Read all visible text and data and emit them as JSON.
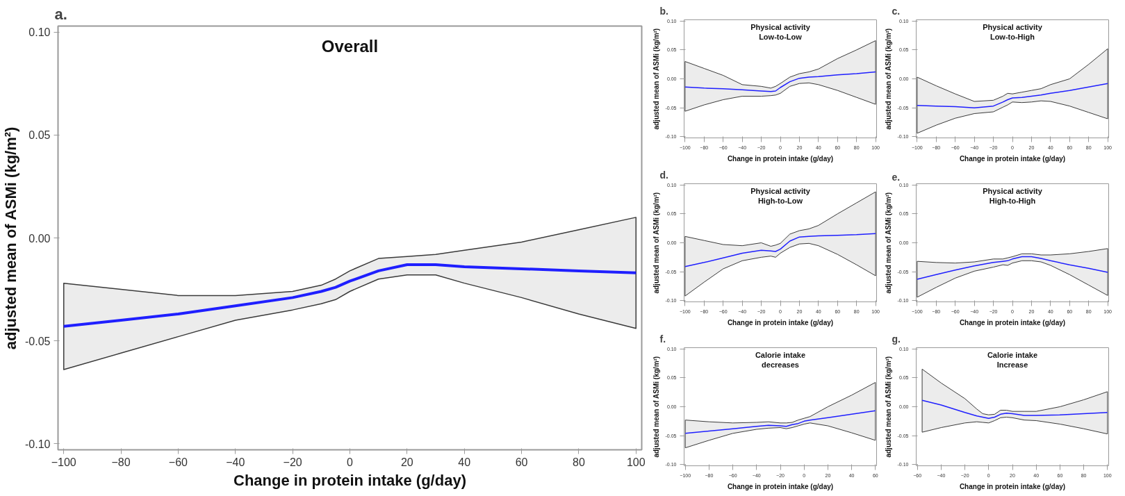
{
  "chart_data": [
    {
      "type": "line",
      "title": "Overall",
      "annotations": [
        "a."
      ],
      "xlabel": "Change in protein intake (g/day)",
      "ylabel": "adjusted mean of ASMi (kg/m²)",
      "xlim": [
        -102,
        102
      ],
      "ylim": [
        -0.103,
        0.103
      ],
      "xticks": [
        -100,
        -80,
        -60,
        -40,
        -20,
        0,
        20,
        40,
        60,
        80,
        100
      ],
      "yticks": [
        {
          "value": -0.1,
          "label": "-0.10"
        },
        {
          "value": -0.05,
          "label": "-0.05"
        },
        {
          "value": 0,
          "label": "0.00"
        },
        {
          "value": 0.05,
          "label": "0.05"
        },
        {
          "value": 0.1,
          "label": "0.10"
        }
      ],
      "grid": false,
      "legend": false,
      "series": [
        {
          "color": "#1f1fff",
          "x": [
            -100,
            -80,
            -60,
            -40,
            -20,
            -10,
            -5,
            0,
            10,
            20,
            30,
            40,
            60,
            80,
            100
          ],
          "values": [
            -0.043,
            -0.04,
            -0.037,
            -0.033,
            -0.029,
            -0.026,
            -0.024,
            -0.021,
            -0.016,
            -0.013,
            -0.013,
            -0.014,
            -0.015,
            -0.016,
            -0.017
          ],
          "upper": [
            -0.022,
            -0.025,
            -0.028,
            -0.028,
            -0.026,
            -0.023,
            -0.02,
            -0.016,
            -0.01,
            -0.009,
            -0.008,
            -0.006,
            -0.002,
            0.004,
            0.01
          ],
          "lower": [
            -0.064,
            -0.056,
            -0.048,
            -0.04,
            -0.035,
            -0.032,
            -0.03,
            -0.026,
            -0.02,
            -0.018,
            -0.018,
            -0.022,
            -0.029,
            -0.037,
            -0.044
          ]
        }
      ]
    },
    {
      "type": "line",
      "title": "Physical activity\nLow-to-Low",
      "annotations": [
        "b."
      ],
      "xlabel": "Change in protein intake (g/day)",
      "ylabel": "adjusted mean of ASMi (kg/m²)",
      "xlim": [
        -101,
        101
      ],
      "ylim": [
        -0.102,
        0.102
      ],
      "xticks": [
        -100,
        -80,
        -60,
        -40,
        -20,
        0,
        20,
        40,
        60,
        80,
        100
      ],
      "yticks": [
        {
          "value": -0.1,
          "label": "-0.10"
        },
        {
          "value": -0.05,
          "label": "-0.05"
        },
        {
          "value": 0,
          "label": "0.00"
        },
        {
          "value": 0.05,
          "label": "0.05"
        },
        {
          "value": 0.1,
          "label": "0.10"
        }
      ],
      "grid": false,
      "legend": false,
      "series": [
        {
          "color": "#1f1fff",
          "x": [
            -100,
            -80,
            -60,
            -40,
            -20,
            -10,
            -5,
            0,
            10,
            20,
            30,
            40,
            60,
            80,
            100
          ],
          "values": [
            -0.014,
            -0.016,
            -0.017,
            -0.019,
            -0.021,
            -0.022,
            -0.021,
            -0.015,
            -0.005,
            0.001,
            0.003,
            0.004,
            0.007,
            0.009,
            0.012
          ],
          "upper": [
            0.03,
            0.018,
            0.006,
            -0.01,
            -0.013,
            -0.016,
            -0.013,
            -0.008,
            0.003,
            0.009,
            0.012,
            0.017,
            0.035,
            0.05,
            0.066
          ],
          "lower": [
            -0.056,
            -0.045,
            -0.036,
            -0.03,
            -0.03,
            -0.029,
            -0.028,
            -0.025,
            -0.013,
            -0.008,
            -0.007,
            -0.01,
            -0.02,
            -0.032,
            -0.044
          ]
        }
      ]
    },
    {
      "type": "line",
      "title": "Physical activity\nLow-to-High",
      "annotations": [
        "c."
      ],
      "xlabel": "Change in protein intake (g/day)",
      "ylabel": "adjusted mean of ASMi (kg/m²)",
      "xlim": [
        -101,
        101
      ],
      "ylim": [
        -0.102,
        0.102
      ],
      "xticks": [
        -100,
        -80,
        -60,
        -40,
        -20,
        0,
        20,
        40,
        60,
        80,
        100
      ],
      "yticks": [
        {
          "value": -0.1,
          "label": "-0.10"
        },
        {
          "value": -0.05,
          "label": "-0.05"
        },
        {
          "value": 0,
          "label": "0.00"
        },
        {
          "value": 0.05,
          "label": "0.05"
        },
        {
          "value": 0.1,
          "label": "0.10"
        }
      ],
      "grid": false,
      "legend": false,
      "series": [
        {
          "color": "#1f1fff",
          "x": [
            -100,
            -80,
            -60,
            -40,
            -20,
            -10,
            -5,
            0,
            10,
            20,
            30,
            40,
            60,
            80,
            100
          ],
          "values": [
            -0.046,
            -0.047,
            -0.048,
            -0.05,
            -0.047,
            -0.04,
            -0.036,
            -0.033,
            -0.032,
            -0.03,
            -0.028,
            -0.025,
            -0.02,
            -0.014,
            -0.008
          ],
          "upper": [
            0.003,
            -0.012,
            -0.026,
            -0.039,
            -0.037,
            -0.03,
            -0.025,
            -0.026,
            -0.023,
            -0.02,
            -0.017,
            -0.01,
            0.0,
            0.025,
            0.052
          ],
          "lower": [
            -0.094,
            -0.08,
            -0.068,
            -0.06,
            -0.057,
            -0.049,
            -0.045,
            -0.04,
            -0.041,
            -0.04,
            -0.038,
            -0.039,
            -0.047,
            -0.058,
            -0.069
          ]
        }
      ]
    },
    {
      "type": "line",
      "title": "Physical activity\nHigh-to-Low",
      "annotations": [
        "d."
      ],
      "xlabel": "Change in protein intake (g/day)",
      "ylabel": "adjusted mean of ASMi (kg/m²)",
      "xlim": [
        -101,
        101
      ],
      "ylim": [
        -0.102,
        0.102
      ],
      "xticks": [
        -100,
        -80,
        -60,
        -40,
        -20,
        0,
        20,
        40,
        60,
        80,
        100
      ],
      "yticks": [
        {
          "value": -0.1,
          "label": "-0.10"
        },
        {
          "value": -0.05,
          "label": "-0.05"
        },
        {
          "value": 0,
          "label": "0.00"
        },
        {
          "value": 0.05,
          "label": "0.05"
        },
        {
          "value": 0.1,
          "label": "0.10"
        }
      ],
      "grid": false,
      "legend": false,
      "series": [
        {
          "color": "#1f1fff",
          "x": [
            -100,
            -80,
            -60,
            -40,
            -20,
            -10,
            -5,
            0,
            10,
            20,
            30,
            40,
            60,
            80,
            100
          ],
          "values": [
            -0.041,
            -0.034,
            -0.026,
            -0.018,
            -0.013,
            -0.014,
            -0.015,
            -0.011,
            0.003,
            0.01,
            0.011,
            0.012,
            0.013,
            0.014,
            0.016
          ],
          "upper": [
            0.011,
            0.004,
            -0.003,
            -0.005,
            0.0,
            -0.006,
            -0.004,
            -0.001,
            0.015,
            0.021,
            0.024,
            0.03,
            0.05,
            0.069,
            0.088
          ],
          "lower": [
            -0.092,
            -0.068,
            -0.045,
            -0.031,
            -0.025,
            -0.023,
            -0.025,
            -0.018,
            -0.008,
            -0.002,
            -0.001,
            -0.005,
            -0.02,
            -0.038,
            -0.057
          ]
        }
      ]
    },
    {
      "type": "line",
      "title": "Physical activity\nHigh-to-High",
      "annotations": [
        "e."
      ],
      "xlabel": "Change in protein intake (g/day)",
      "ylabel": "adjusted mean of ASMi (kg/m²)",
      "xlim": [
        -101,
        101
      ],
      "ylim": [
        -0.102,
        0.102
      ],
      "xticks": [
        -100,
        -80,
        -60,
        -40,
        -20,
        0,
        20,
        40,
        60,
        80,
        100
      ],
      "yticks": [
        {
          "value": -0.1,
          "label": "-0.10"
        },
        {
          "value": -0.05,
          "label": "-0.05"
        },
        {
          "value": 0,
          "label": "0.00"
        },
        {
          "value": 0.05,
          "label": "0.05"
        },
        {
          "value": 0.1,
          "label": "0.10"
        }
      ],
      "grid": false,
      "legend": false,
      "series": [
        {
          "color": "#1f1fff",
          "x": [
            -100,
            -80,
            -60,
            -40,
            -20,
            -10,
            -5,
            0,
            10,
            20,
            30,
            40,
            60,
            80,
            100
          ],
          "values": [
            -0.063,
            -0.055,
            -0.047,
            -0.04,
            -0.034,
            -0.032,
            -0.031,
            -0.028,
            -0.024,
            -0.024,
            -0.027,
            -0.031,
            -0.038,
            -0.044,
            -0.051
          ],
          "upper": [
            -0.032,
            -0.034,
            -0.035,
            -0.033,
            -0.028,
            -0.028,
            -0.026,
            -0.024,
            -0.019,
            -0.019,
            -0.021,
            -0.021,
            -0.019,
            -0.015,
            -0.01
          ],
          "lower": [
            -0.094,
            -0.077,
            -0.061,
            -0.049,
            -0.042,
            -0.038,
            -0.039,
            -0.035,
            -0.031,
            -0.031,
            -0.033,
            -0.039,
            -0.055,
            -0.073,
            -0.091
          ]
        }
      ]
    },
    {
      "type": "line",
      "title": "Calorie intake\ndecreases",
      "annotations": [
        "f."
      ],
      "xlabel": "Change in protein intake (g/day)",
      "ylabel": "adjusted mean of ASMi (kg/m²)",
      "xlim": [
        -101,
        61
      ],
      "ylim": [
        -0.102,
        0.102
      ],
      "xticks": [
        -100,
        -80,
        -60,
        -40,
        -20,
        0,
        20,
        40,
        60
      ],
      "yticks": [
        {
          "value": -0.1,
          "label": "-0.10"
        },
        {
          "value": -0.05,
          "label": "-0.05"
        },
        {
          "value": 0,
          "label": "0.00"
        },
        {
          "value": 0.05,
          "label": "0.05"
        },
        {
          "value": 0.1,
          "label": "0.10"
        }
      ],
      "grid": false,
      "legend": false,
      "series": [
        {
          "color": "#1f1fff",
          "x": [
            -100,
            -80,
            -60,
            -40,
            -30,
            -20,
            -15,
            -10,
            -5,
            0,
            5,
            20,
            40,
            60
          ],
          "values": [
            -0.046,
            -0.042,
            -0.038,
            -0.034,
            -0.032,
            -0.033,
            -0.034,
            -0.031,
            -0.029,
            -0.025,
            -0.023,
            -0.019,
            -0.013,
            -0.007
          ],
          "upper": [
            -0.023,
            -0.026,
            -0.028,
            -0.027,
            -0.026,
            -0.028,
            -0.028,
            -0.027,
            -0.023,
            -0.02,
            -0.017,
            0.0,
            0.02,
            0.042
          ],
          "lower": [
            -0.071,
            -0.058,
            -0.046,
            -0.039,
            -0.037,
            -0.036,
            -0.038,
            -0.036,
            -0.033,
            -0.03,
            -0.028,
            -0.033,
            -0.045,
            -0.058
          ]
        }
      ]
    },
    {
      "type": "line",
      "title": "Calorie intake\nIncrease",
      "annotations": [
        "g."
      ],
      "xlabel": "Change in protein intake (g/day)",
      "ylabel": "adjusted mean of ASMi (kg/m²)",
      "xlim": [
        -61,
        101
      ],
      "ylim": [
        -0.102,
        0.102
      ],
      "xticks": [
        -60,
        -40,
        -20,
        0,
        20,
        40,
        60,
        80,
        100
      ],
      "yticks": [
        {
          "value": -0.1,
          "label": "-0.10"
        },
        {
          "value": -0.05,
          "label": "-0.05"
        },
        {
          "value": 0,
          "label": "0.00"
        },
        {
          "value": 0.05,
          "label": "0.05"
        },
        {
          "value": 0.1,
          "label": "0.10"
        }
      ],
      "grid": false,
      "legend": false,
      "series": [
        {
          "color": "#1f1fff",
          "x": [
            -56,
            -40,
            -20,
            -10,
            -5,
            0,
            5,
            10,
            15,
            20,
            30,
            40,
            60,
            80,
            100
          ],
          "values": [
            0.011,
            0.003,
            -0.01,
            -0.016,
            -0.018,
            -0.02,
            -0.018,
            -0.013,
            -0.011,
            -0.012,
            -0.015,
            -0.015,
            -0.014,
            -0.012,
            -0.01
          ],
          "upper": [
            0.065,
            0.041,
            0.014,
            -0.004,
            -0.012,
            -0.014,
            -0.013,
            -0.006,
            -0.006,
            -0.008,
            -0.008,
            -0.008,
            0.0,
            0.012,
            0.026
          ],
          "lower": [
            -0.044,
            -0.036,
            -0.028,
            -0.026,
            -0.027,
            -0.028,
            -0.024,
            -0.019,
            -0.018,
            -0.019,
            -0.023,
            -0.024,
            -0.03,
            -0.038,
            -0.047
          ]
        }
      ]
    }
  ]
}
